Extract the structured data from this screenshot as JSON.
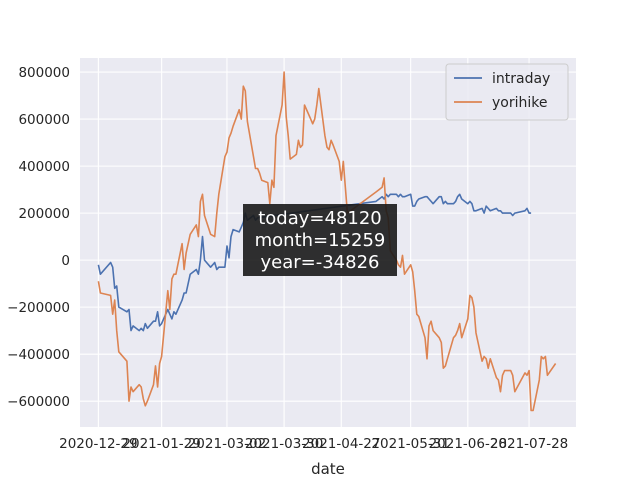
{
  "chart_data": {
    "type": "line",
    "title": "",
    "xlabel": "date",
    "ylabel": "",
    "ylim": [
      -710000,
      860000
    ],
    "yticks": [
      -600000,
      -400000,
      -200000,
      0,
      200000,
      400000,
      600000,
      800000
    ],
    "ytick_labels": [
      "−600000",
      "−400000",
      "−200000",
      "0",
      "200000",
      "400000",
      "600000",
      "800000"
    ],
    "xlim": [
      "2020-12-20",
      "2021-08-20"
    ],
    "xticks": [
      "2020-12-29",
      "2021-01-29",
      "2021-03-02",
      "2021-03-30",
      "2021-04-27",
      "2021-05-31",
      "2021-06-28",
      "2021-07-28"
    ],
    "xtick_labels": [
      "2020-12-29",
      "2021-01-29",
      "2021-03-02",
      "2021-03-30",
      "2021-04-27",
      "2021-05-31",
      "2021-06-28",
      "2021-07-28"
    ],
    "grid": true,
    "legend_position": "top-right",
    "colors": {
      "intraday": "#4c72b0",
      "yorihike": "#dd8452",
      "background": "#eaeaf2",
      "grid": "#ffffff",
      "annotation_bg": "#1a1a1a"
    },
    "series": [
      {
        "name": "intraday",
        "points": [
          [
            "2020-12-29",
            -20000
          ],
          [
            "2020-12-30",
            -60000
          ],
          [
            "2021-01-04",
            -10000
          ],
          [
            "2021-01-05",
            -30000
          ],
          [
            "2021-01-06",
            -120000
          ],
          [
            "2021-01-07",
            -110000
          ],
          [
            "2021-01-08",
            -200000
          ],
          [
            "2021-01-12",
            -220000
          ],
          [
            "2021-01-13",
            -210000
          ],
          [
            "2021-01-14",
            -300000
          ],
          [
            "2021-01-15",
            -280000
          ],
          [
            "2021-01-18",
            -300000
          ],
          [
            "2021-01-19",
            -290000
          ],
          [
            "2021-01-20",
            -300000
          ],
          [
            "2021-01-21",
            -270000
          ],
          [
            "2021-01-22",
            -290000
          ],
          [
            "2021-01-25",
            -260000
          ],
          [
            "2021-01-26",
            -260000
          ],
          [
            "2021-01-27",
            -220000
          ],
          [
            "2021-01-28",
            -280000
          ],
          [
            "2021-01-29",
            -270000
          ],
          [
            "2021-02-01",
            -210000
          ],
          [
            "2021-02-02",
            -230000
          ],
          [
            "2021-02-03",
            -250000
          ],
          [
            "2021-02-04",
            -220000
          ],
          [
            "2021-02-05",
            -230000
          ],
          [
            "2021-02-08",
            -170000
          ],
          [
            "2021-02-09",
            -140000
          ],
          [
            "2021-02-10",
            -140000
          ],
          [
            "2021-02-12",
            -60000
          ],
          [
            "2021-02-15",
            -40000
          ],
          [
            "2021-02-16",
            -60000
          ],
          [
            "2021-02-17",
            0
          ],
          [
            "2021-02-18",
            100000
          ],
          [
            "2021-02-19",
            0
          ],
          [
            "2021-02-22",
            -30000
          ],
          [
            "2021-02-24",
            -10000
          ],
          [
            "2021-02-25",
            -40000
          ],
          [
            "2021-02-26",
            -30000
          ],
          [
            "2021-03-01",
            -30000
          ],
          [
            "2021-03-02",
            60000
          ],
          [
            "2021-03-03",
            10000
          ],
          [
            "2021-03-04",
            100000
          ],
          [
            "2021-03-05",
            130000
          ],
          [
            "2021-03-08",
            120000
          ],
          [
            "2021-03-09",
            140000
          ],
          [
            "2021-03-10",
            160000
          ],
          [
            "2021-03-11",
            200000
          ],
          [
            "2021-03-12",
            170000
          ],
          [
            "2021-03-15",
            190000
          ],
          [
            "2021-03-16",
            170000
          ],
          [
            "2021-03-17",
            180000
          ],
          [
            "2021-05-14",
            250000
          ],
          [
            "2021-05-17",
            270000
          ],
          [
            "2021-05-18",
            260000
          ],
          [
            "2021-05-19",
            280000
          ],
          [
            "2021-05-20",
            270000
          ],
          [
            "2021-05-21",
            280000
          ],
          [
            "2021-05-24",
            280000
          ],
          [
            "2021-05-25",
            270000
          ],
          [
            "2021-05-26",
            280000
          ],
          [
            "2021-05-27",
            270000
          ],
          [
            "2021-05-28",
            270000
          ],
          [
            "2021-05-31",
            280000
          ],
          [
            "2021-06-01",
            230000
          ],
          [
            "2021-06-02",
            230000
          ],
          [
            "2021-06-03",
            250000
          ],
          [
            "2021-06-04",
            260000
          ],
          [
            "2021-06-07",
            270000
          ],
          [
            "2021-06-08",
            270000
          ],
          [
            "2021-06-09",
            260000
          ],
          [
            "2021-06-10",
            250000
          ],
          [
            "2021-06-11",
            240000
          ],
          [
            "2021-06-14",
            270000
          ],
          [
            "2021-06-15",
            270000
          ],
          [
            "2021-06-16",
            240000
          ],
          [
            "2021-06-17",
            250000
          ],
          [
            "2021-06-18",
            240000
          ],
          [
            "2021-06-21",
            240000
          ],
          [
            "2021-06-22",
            250000
          ],
          [
            "2021-06-23",
            270000
          ],
          [
            "2021-06-24",
            280000
          ],
          [
            "2021-06-25",
            260000
          ],
          [
            "2021-06-28",
            240000
          ],
          [
            "2021-06-29",
            250000
          ],
          [
            "2021-06-30",
            240000
          ],
          [
            "2021-07-01",
            210000
          ],
          [
            "2021-07-02",
            210000
          ],
          [
            "2021-07-05",
            220000
          ],
          [
            "2021-07-06",
            200000
          ],
          [
            "2021-07-07",
            230000
          ],
          [
            "2021-07-08",
            220000
          ],
          [
            "2021-07-09",
            210000
          ],
          [
            "2021-07-12",
            220000
          ],
          [
            "2021-07-13",
            210000
          ],
          [
            "2021-07-14",
            210000
          ],
          [
            "2021-07-15",
            200000
          ],
          [
            "2021-07-16",
            200000
          ],
          [
            "2021-07-19",
            200000
          ],
          [
            "2021-07-20",
            190000
          ],
          [
            "2021-07-21",
            200000
          ],
          [
            "2021-07-26",
            210000
          ],
          [
            "2021-07-27",
            220000
          ],
          [
            "2021-07-28",
            200000
          ],
          [
            "2021-07-29",
            200000
          ]
        ]
      },
      {
        "name": "yorihike",
        "points": [
          [
            "2020-12-29",
            -90000
          ],
          [
            "2020-12-30",
            -140000
          ],
          [
            "2021-01-04",
            -150000
          ],
          [
            "2021-01-05",
            -230000
          ],
          [
            "2021-01-06",
            -170000
          ],
          [
            "2021-01-07",
            -300000
          ],
          [
            "2021-01-08",
            -390000
          ],
          [
            "2021-01-12",
            -430000
          ],
          [
            "2021-01-13",
            -600000
          ],
          [
            "2021-01-14",
            -540000
          ],
          [
            "2021-01-15",
            -560000
          ],
          [
            "2021-01-18",
            -530000
          ],
          [
            "2021-01-19",
            -540000
          ],
          [
            "2021-01-20",
            -590000
          ],
          [
            "2021-01-21",
            -620000
          ],
          [
            "2021-01-22",
            -600000
          ],
          [
            "2021-01-25",
            -530000
          ],
          [
            "2021-01-26",
            -450000
          ],
          [
            "2021-01-27",
            -540000
          ],
          [
            "2021-01-28",
            -440000
          ],
          [
            "2021-01-29",
            -410000
          ],
          [
            "2021-02-01",
            -130000
          ],
          [
            "2021-02-02",
            -210000
          ],
          [
            "2021-02-03",
            -80000
          ],
          [
            "2021-02-04",
            -60000
          ],
          [
            "2021-02-05",
            -60000
          ],
          [
            "2021-02-08",
            70000
          ],
          [
            "2021-02-09",
            -40000
          ],
          [
            "2021-02-10",
            30000
          ],
          [
            "2021-02-12",
            110000
          ],
          [
            "2021-02-15",
            150000
          ],
          [
            "2021-02-16",
            100000
          ],
          [
            "2021-02-17",
            250000
          ],
          [
            "2021-02-18",
            280000
          ],
          [
            "2021-02-19",
            190000
          ],
          [
            "2021-02-22",
            110000
          ],
          [
            "2021-02-24",
            100000
          ],
          [
            "2021-02-25",
            200000
          ],
          [
            "2021-02-26",
            280000
          ],
          [
            "2021-03-01",
            440000
          ],
          [
            "2021-03-02",
            460000
          ],
          [
            "2021-03-03",
            520000
          ],
          [
            "2021-03-04",
            540000
          ],
          [
            "2021-03-05",
            570000
          ],
          [
            "2021-03-08",
            640000
          ],
          [
            "2021-03-09",
            600000
          ],
          [
            "2021-03-10",
            740000
          ],
          [
            "2021-03-11",
            720000
          ],
          [
            "2021-03-12",
            590000
          ],
          [
            "2021-03-15",
            440000
          ],
          [
            "2021-03-16",
            390000
          ],
          [
            "2021-03-17",
            390000
          ],
          [
            "2021-03-18",
            370000
          ],
          [
            "2021-03-19",
            340000
          ],
          [
            "2021-03-22",
            330000
          ],
          [
            "2021-03-23",
            240000
          ],
          [
            "2021-03-24",
            340000
          ],
          [
            "2021-03-25",
            310000
          ],
          [
            "2021-03-26",
            530000
          ],
          [
            "2021-03-29",
            660000
          ],
          [
            "2021-03-30",
            800000
          ],
          [
            "2021-03-31",
            610000
          ],
          [
            "2021-04-01",
            530000
          ],
          [
            "2021-04-02",
            430000
          ],
          [
            "2021-04-05",
            450000
          ],
          [
            "2021-04-06",
            510000
          ],
          [
            "2021-04-07",
            480000
          ],
          [
            "2021-04-08",
            490000
          ],
          [
            "2021-04-09",
            660000
          ],
          [
            "2021-04-12",
            600000
          ],
          [
            "2021-04-13",
            580000
          ],
          [
            "2021-04-14",
            600000
          ],
          [
            "2021-04-15",
            660000
          ],
          [
            "2021-04-16",
            730000
          ],
          [
            "2021-04-19",
            530000
          ],
          [
            "2021-04-20",
            480000
          ],
          [
            "2021-04-21",
            470000
          ],
          [
            "2021-04-22",
            510000
          ],
          [
            "2021-04-23",
            490000
          ],
          [
            "2021-04-26",
            420000
          ],
          [
            "2021-04-27",
            340000
          ],
          [
            "2021-04-28",
            420000
          ],
          [
            "2021-04-30",
            200000
          ],
          [
            "2021-05-14",
            290000
          ],
          [
            "2021-05-17",
            310000
          ],
          [
            "2021-05-18",
            350000
          ],
          [
            "2021-05-19",
            210000
          ],
          [
            "2021-05-20",
            180000
          ],
          [
            "2021-05-21",
            40000
          ],
          [
            "2021-05-24",
            0
          ],
          [
            "2021-05-25",
            -20000
          ],
          [
            "2021-05-26",
            -30000
          ],
          [
            "2021-05-27",
            20000
          ],
          [
            "2021-05-28",
            -60000
          ],
          [
            "2021-05-31",
            -20000
          ],
          [
            "2021-06-01",
            -50000
          ],
          [
            "2021-06-02",
            -130000
          ],
          [
            "2021-06-03",
            -230000
          ],
          [
            "2021-06-04",
            -240000
          ],
          [
            "2021-06-07",
            -330000
          ],
          [
            "2021-06-08",
            -420000
          ],
          [
            "2021-06-09",
            -280000
          ],
          [
            "2021-06-10",
            -260000
          ],
          [
            "2021-06-11",
            -300000
          ],
          [
            "2021-06-14",
            -330000
          ],
          [
            "2021-06-15",
            -350000
          ],
          [
            "2021-06-16",
            -460000
          ],
          [
            "2021-06-17",
            -450000
          ],
          [
            "2021-06-18",
            -420000
          ],
          [
            "2021-06-21",
            -330000
          ],
          [
            "2021-06-22",
            -320000
          ],
          [
            "2021-06-23",
            -300000
          ],
          [
            "2021-06-24",
            -270000
          ],
          [
            "2021-06-25",
            -330000
          ],
          [
            "2021-06-28",
            -250000
          ],
          [
            "2021-06-29",
            -150000
          ],
          [
            "2021-06-30",
            -160000
          ],
          [
            "2021-07-01",
            -200000
          ],
          [
            "2021-07-02",
            -310000
          ],
          [
            "2021-07-05",
            -430000
          ],
          [
            "2021-07-06",
            -410000
          ],
          [
            "2021-07-07",
            -420000
          ],
          [
            "2021-07-08",
            -460000
          ],
          [
            "2021-07-09",
            -420000
          ],
          [
            "2021-07-12",
            -500000
          ],
          [
            "2021-07-13",
            -510000
          ],
          [
            "2021-07-14",
            -560000
          ],
          [
            "2021-07-15",
            -490000
          ],
          [
            "2021-07-16",
            -470000
          ],
          [
            "2021-07-19",
            -470000
          ],
          [
            "2021-07-20",
            -490000
          ],
          [
            "2021-07-21",
            -560000
          ],
          [
            "2021-07-26",
            -480000
          ],
          [
            "2021-07-27",
            -490000
          ],
          [
            "2021-07-28",
            -470000
          ],
          [
            "2021-07-29",
            -640000
          ],
          [
            "2021-07-30",
            -640000
          ],
          [
            "2021-08-02",
            -510000
          ],
          [
            "2021-08-03",
            -410000
          ],
          [
            "2021-08-04",
            -420000
          ],
          [
            "2021-08-05",
            -410000
          ],
          [
            "2021-08-06",
            -490000
          ],
          [
            "2021-08-10",
            -440000
          ]
        ]
      }
    ],
    "annotation": {
      "lines": [
        "today=48120",
        "month=15259",
        "year=-34826"
      ]
    }
  }
}
